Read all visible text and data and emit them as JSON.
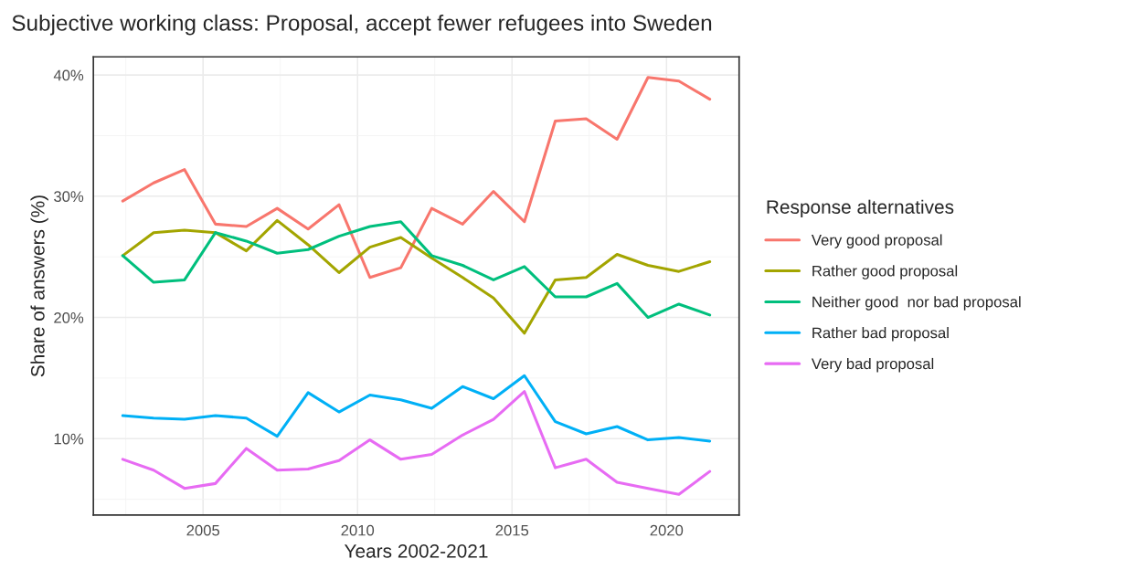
{
  "chart_data": {
    "type": "line",
    "title": "Subjective working class: Proposal, accept fewer refugees into Sweden",
    "xlabel": "Years 2002-2021",
    "ylabel": "Share of answers (%)",
    "legend_title": "Response alternatives",
    "legend": "right",
    "grid": true,
    "line_style": "solid",
    "marker": "none",
    "x": [
      2002.4,
      2003.4,
      2004.4,
      2005.4,
      2006.4,
      2007.4,
      2008.4,
      2009.4,
      2010.4,
      2011.4,
      2012.4,
      2013.4,
      2014.4,
      2015.4,
      2016.4,
      2017.4,
      2018.4,
      2019.4,
      2020.4,
      2021.4
    ],
    "xlim": [
      2001.45,
      2022.35
    ],
    "xticks": [
      2005,
      2010,
      2015,
      2020
    ],
    "ylim": [
      3.7,
      41.5
    ],
    "yticks": [
      {
        "value": 10,
        "label": "10%"
      },
      {
        "value": 20,
        "label": "20%"
      },
      {
        "value": 30,
        "label": "30%"
      },
      {
        "value": 40,
        "label": "40%"
      }
    ],
    "series": [
      {
        "name": "Very good proposal",
        "color": "#f8766d",
        "values": [
          29.6,
          31.1,
          32.2,
          27.7,
          27.5,
          29.0,
          27.3,
          29.3,
          23.3,
          24.1,
          29.0,
          27.7,
          30.4,
          27.9,
          36.2,
          36.4,
          34.7,
          39.8,
          39.5,
          38.0
        ]
      },
      {
        "name": "Rather good proposal",
        "color": "#a3a500",
        "values": [
          25.1,
          27.0,
          27.2,
          27.0,
          25.5,
          28.0,
          26.0,
          23.7,
          25.8,
          26.6,
          24.9,
          23.3,
          21.6,
          18.7,
          23.1,
          23.3,
          25.2,
          24.3,
          23.8,
          24.6
        ]
      },
      {
        "name": "Neither good  nor bad proposal",
        "color": "#00bf7d",
        "values": [
          25.1,
          22.9,
          23.1,
          27.0,
          26.3,
          25.3,
          25.6,
          26.7,
          27.5,
          27.9,
          25.1,
          24.3,
          23.1,
          24.2,
          21.7,
          21.7,
          22.8,
          20.0,
          21.1,
          20.2
        ]
      },
      {
        "name": "Rather bad proposal",
        "color": "#00b0f6",
        "values": [
          11.9,
          11.7,
          11.6,
          11.9,
          11.7,
          10.2,
          13.8,
          12.2,
          13.6,
          13.2,
          12.5,
          14.3,
          13.3,
          15.2,
          11.4,
          10.4,
          11.0,
          9.9,
          10.1,
          9.8
        ]
      },
      {
        "name": "Very bad proposal",
        "color": "#e76bf3",
        "values": [
          8.3,
          7.4,
          5.9,
          6.3,
          9.2,
          7.4,
          7.5,
          8.2,
          9.9,
          8.3,
          8.7,
          10.3,
          11.6,
          13.9,
          7.6,
          8.3,
          6.4,
          5.9,
          5.4,
          7.3
        ]
      }
    ]
  }
}
